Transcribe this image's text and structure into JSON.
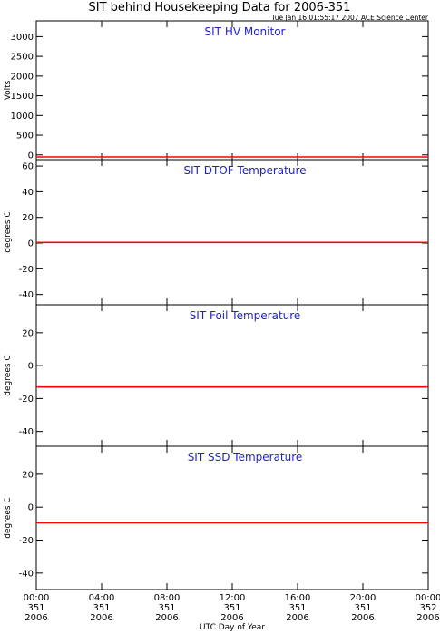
{
  "header": {
    "title": "SIT behind Housekeeping Data for 2006-351",
    "timestamp": "Tue Jan 16 01:55:17 2007 ACE Science Center"
  },
  "colors": {
    "series": "#ff0000",
    "panel_title": "#1f1fd0",
    "axes": "#000000"
  },
  "chart_data": [
    {
      "type": "line",
      "title": "SIT HV Monitor",
      "ylabel": "Volts",
      "ylim": [
        -120,
        3400
      ],
      "yticks": [
        0,
        500,
        1000,
        1500,
        2000,
        2500,
        3000
      ],
      "xlim": [
        0,
        24
      ],
      "series": [
        {
          "x": [
            0,
            24
          ],
          "y": [
            -50,
            -50
          ]
        }
      ]
    },
    {
      "type": "line",
      "title": "SIT DTOF Temperature",
      "ylabel": "degrees C",
      "ylim": [
        -48,
        65
      ],
      "yticks": [
        -40,
        -20,
        0,
        20,
        40,
        60
      ],
      "xlim": [
        0,
        24
      ],
      "series": [
        {
          "x": [
            0,
            24
          ],
          "y": [
            0.5,
            0.5
          ]
        }
      ]
    },
    {
      "type": "line",
      "title": "SIT Foil Temperature",
      "ylabel": "degrees C",
      "ylim": [
        -49,
        37
      ],
      "yticks": [
        -40,
        -20,
        0,
        20
      ],
      "xlim": [
        0,
        24
      ],
      "series": [
        {
          "x": [
            0,
            24
          ],
          "y": [
            -13,
            -13
          ]
        }
      ]
    },
    {
      "type": "line",
      "title": "SIT SSD Temperature",
      "ylabel": "degrees C",
      "ylim": [
        -50,
        37
      ],
      "yticks": [
        -40,
        -20,
        0,
        20
      ],
      "xlim": [
        0,
        24
      ],
      "series": [
        {
          "x": [
            0,
            24
          ],
          "y": [
            -9.5,
            -9.5
          ]
        }
      ]
    }
  ],
  "x_axis": {
    "label": "UTC Day of Year",
    "ticks": [
      {
        "hour": 0,
        "time": "00:00",
        "day": "351",
        "year": "2006"
      },
      {
        "hour": 4,
        "time": "04:00",
        "day": "351",
        "year": "2006"
      },
      {
        "hour": 8,
        "time": "08:00",
        "day": "351",
        "year": "2006"
      },
      {
        "hour": 12,
        "time": "12:00",
        "day": "351",
        "year": "2006"
      },
      {
        "hour": 16,
        "time": "16:00",
        "day": "351",
        "year": "2006"
      },
      {
        "hour": 20,
        "time": "20:00",
        "day": "351",
        "year": "2006"
      },
      {
        "hour": 24,
        "time": "00:00",
        "day": "352",
        "year": "2006"
      }
    ]
  }
}
